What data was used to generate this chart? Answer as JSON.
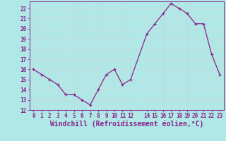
{
  "x": [
    0,
    1,
    2,
    3,
    4,
    5,
    6,
    7,
    8,
    9,
    10,
    11,
    12,
    14,
    15,
    16,
    17,
    18,
    19,
    20,
    21,
    22,
    23
  ],
  "y": [
    16,
    15.5,
    15,
    14.5,
    13.5,
    13.5,
    13,
    12.5,
    14,
    15.5,
    16,
    14.5,
    15,
    19.5,
    20.5,
    21.5,
    22.5,
    22,
    21.5,
    20.5,
    20.5,
    17.5,
    15.5
  ],
  "line_color": "#882288",
  "marker_color": "#882288",
  "bg_color": "#b0e8e8",
  "grid_color": "#c8d8d8",
  "xlabel": "Windchill (Refroidissement éolien,°C)",
  "xlabel_color": "#882288",
  "ylim": [
    12,
    22.7
  ],
  "xlim": [
    -0.5,
    23.5
  ],
  "yticks": [
    12,
    13,
    14,
    15,
    16,
    17,
    18,
    19,
    20,
    21,
    22
  ],
  "xticks": [
    0,
    1,
    2,
    3,
    4,
    5,
    6,
    7,
    8,
    9,
    10,
    11,
    12,
    14,
    15,
    16,
    17,
    18,
    19,
    20,
    21,
    22,
    23
  ],
  "tick_color": "#882288",
  "tick_labelsize": 5.5,
  "xlabel_fontsize": 7.0,
  "spine_color": "#882288"
}
